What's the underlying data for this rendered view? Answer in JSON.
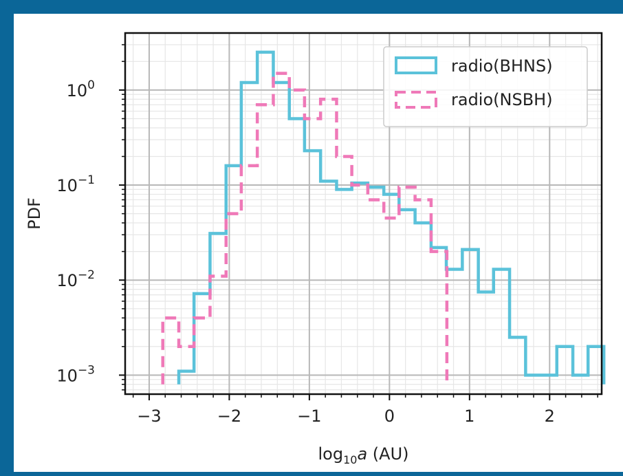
{
  "chart_data": {
    "type": "step-histogram",
    "xlabel": "log10a (AU)",
    "ylabel": "PDF",
    "xlim": [
      -3.3,
      2.65
    ],
    "ylim_log10": [
      -3.2,
      0.6
    ],
    "yscale": "log",
    "grid": true,
    "minor_grid": true,
    "legend_position": "top-right",
    "x_ticks": [
      "−3",
      "−2",
      "−1",
      "0",
      "1",
      "2"
    ],
    "x_tick_values": [
      -3,
      -2,
      -1,
      0,
      1,
      2
    ],
    "y_ticks": [
      {
        "base": "10",
        "exp": "0",
        "value": 0
      },
      {
        "base": "10",
        "exp": "−1",
        "value": -1
      },
      {
        "base": "10",
        "exp": "−2",
        "value": -2
      },
      {
        "base": "10",
        "exp": "−3",
        "value": -3
      }
    ],
    "series": [
      {
        "name": "radio(BHNS)",
        "color": "#5bc2da",
        "dashed": false,
        "edges": [
          -2.83,
          -2.63,
          -2.44,
          -2.24,
          -2.04,
          -1.85,
          -1.65,
          -1.45,
          -1.25,
          -1.06,
          -0.86,
          -0.66,
          -0.47,
          -0.27,
          -0.07,
          0.12,
          0.32,
          0.52,
          0.71,
          0.91,
          1.11,
          1.3,
          1.5,
          1.7,
          1.89,
          2.09,
          2.29,
          2.48
        ],
        "values": [
          null,
          0.0011,
          0.0072,
          0.031,
          0.16,
          1.2,
          2.5,
          1.2,
          0.5,
          0.23,
          0.11,
          0.09,
          0.105,
          0.095,
          0.08,
          0.055,
          0.04,
          0.022,
          0.013,
          0.021,
          0.0075,
          0.013,
          0.0025,
          0.001,
          0.001,
          0.002,
          0.001,
          0.002
        ],
        "note_base": 0.0008
      },
      {
        "name": "radio(NSBH)",
        "color": "#ef79b8",
        "dashed": true,
        "edges": [
          -2.83,
          -2.63,
          -2.44,
          -2.24,
          -2.04,
          -1.85,
          -1.65,
          -1.45,
          -1.25,
          -1.06,
          -0.86,
          -0.66,
          -0.47,
          -0.27,
          -0.07,
          0.12,
          0.32,
          0.52
        ],
        "values": [
          0.004,
          0.002,
          0.004,
          0.011,
          0.05,
          0.16,
          0.7,
          1.5,
          1.0,
          0.5,
          0.8,
          0.2,
          0.1,
          0.07,
          0.045,
          0.095,
          0.07,
          0.02
        ],
        "note_base": 0.0008
      }
    ]
  }
}
